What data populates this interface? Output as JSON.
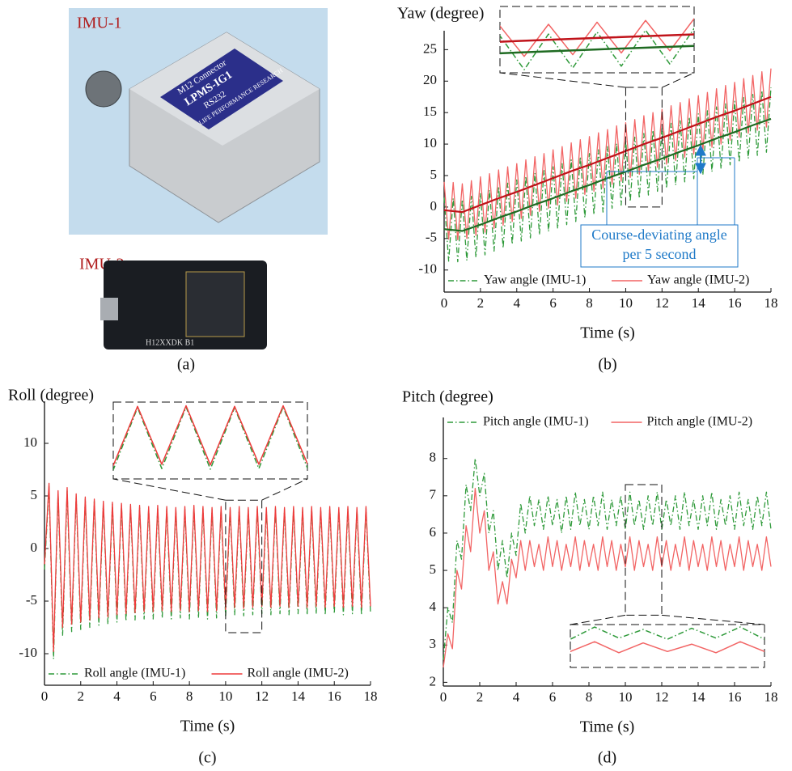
{
  "photo_panel": {
    "labels": [
      "IMU-1",
      "IMU-2"
    ],
    "caption": "(a)",
    "device_texts": [
      "M12 Connector",
      "LPMS-IG1",
      "RS232",
      "LIFE PERFORMANCE RESEARCH",
      "H12XXDK B1"
    ]
  },
  "chart_data": [
    {
      "type": "line",
      "caption": "(b)",
      "ylabel": "Yaw (degree)",
      "xlabel": "Time (s)",
      "annotation": [
        "Course-deviating angle",
        "per 5 second"
      ],
      "xlim": [
        0,
        18
      ],
      "xticks": [
        0,
        2,
        4,
        6,
        8,
        10,
        12,
        14,
        16,
        18
      ],
      "ylim": [
        -13.5,
        28
      ],
      "yticks": [
        -10,
        -5,
        0,
        5,
        10,
        15,
        20,
        25
      ],
      "legend": "lower",
      "inset": {
        "xlim": [
          10,
          12
        ],
        "ylim": [
          0,
          19
        ]
      },
      "x": [
        0,
        0.25,
        0.5,
        0.75,
        1,
        1.25,
        1.5,
        1.75,
        2,
        2.25,
        2.5,
        2.75,
        3,
        3.25,
        3.5,
        3.75,
        4,
        4.25,
        4.5,
        4.75,
        5,
        5.25,
        5.5,
        5.75,
        6,
        6.25,
        6.5,
        6.75,
        7,
        7.25,
        7.5,
        7.75,
        8,
        8.25,
        8.5,
        8.75,
        9,
        9.25,
        9.5,
        9.75,
        10,
        10.25,
        10.5,
        10.75,
        11,
        11.25,
        11.5,
        11.75,
        12,
        12.25,
        12.5,
        12.75,
        13,
        13.25,
        13.5,
        13.75,
        14,
        14.25,
        14.5,
        14.75,
        15,
        15.25,
        15.5,
        15.75,
        16,
        16.25,
        16.5,
        16.75,
        17,
        17.25,
        17.5,
        17.75,
        18
      ],
      "series": [
        {
          "name": "Yaw angle (IMU-1)",
          "color": "#2f9a3a",
          "dash": "dashdot",
          "values": [
            1.5,
            -8.6,
            1.4,
            -8.7,
            1.2,
            -8.5,
            1.7,
            -8.0,
            2.2,
            -7.6,
            2.7,
            -7.0,
            3.3,
            -6.5,
            3.8,
            -5.9,
            4.3,
            -5.4,
            4.9,
            -4.9,
            5.4,
            -4.4,
            5.8,
            -3.9,
            6.4,
            -3.4,
            6.9,
            -2.8,
            7.5,
            -2.3,
            8.0,
            -1.7,
            8.5,
            -1.2,
            9.1,
            -0.8,
            9.6,
            -0.2,
            10.1,
            0.3,
            10.6,
            0.9,
            11.1,
            1.4,
            11.7,
            1.9,
            12.2,
            2.5,
            12.7,
            3.0,
            13.3,
            3.5,
            13.7,
            4.0,
            14.3,
            4.5,
            14.8,
            5.1,
            15.3,
            5.6,
            15.9,
            6.1,
            16.4,
            6.7,
            16.8,
            7.1,
            17.4,
            7.7,
            17.9,
            8.2,
            18.5,
            8.7,
            19.0
          ]
        },
        {
          "name": "Yaw angle (IMU-2)",
          "color": "#f26464",
          "dash": "solid",
          "values": [
            4.0,
            -5.1,
            3.9,
            -5.2,
            3.7,
            -5.0,
            4.2,
            -4.5,
            4.8,
            -4.0,
            5.3,
            -3.4,
            5.9,
            -2.9,
            6.4,
            -2.3,
            6.9,
            -1.8,
            7.5,
            -1.3,
            8.0,
            -0.7,
            8.5,
            -0.2,
            9.1,
            0.3,
            9.6,
            0.9,
            10.2,
            1.4,
            10.7,
            2.0,
            11.2,
            2.5,
            11.8,
            3.0,
            12.3,
            3.6,
            12.9,
            4.1,
            13.4,
            4.7,
            13.9,
            5.2,
            14.5,
            5.7,
            15.0,
            6.3,
            15.5,
            6.8,
            16.1,
            7.4,
            16.6,
            7.9,
            17.2,
            8.4,
            17.7,
            9.0,
            18.2,
            9.5,
            18.8,
            10.0,
            19.3,
            10.6,
            19.8,
            11.1,
            20.4,
            11.7,
            20.9,
            12.2,
            21.5,
            12.7,
            22.0
          ]
        },
        {
          "color": "#1f6b22",
          "dash": "solid",
          "x": [
            0,
            1,
            2,
            3,
            4,
            5,
            6,
            7,
            8,
            9,
            10,
            11,
            12,
            13,
            14,
            15,
            16,
            17,
            18
          ],
          "values": [
            -3.5,
            -3.8,
            -2.8,
            -1.7,
            -0.7,
            0.4,
            1.4,
            2.5,
            3.5,
            4.6,
            5.6,
            6.7,
            7.7,
            8.8,
            9.8,
            10.9,
            11.9,
            13.0,
            14.0
          ]
        },
        {
          "color": "#c0131a",
          "dash": "solid",
          "x": [
            0,
            1,
            2,
            3,
            4,
            5,
            6,
            7,
            8,
            9,
            10,
            11,
            12,
            13,
            14,
            15,
            16,
            17,
            18
          ],
          "values": [
            -0.5,
            -0.8,
            0.3,
            1.4,
            2.4,
            3.5,
            4.6,
            5.7,
            6.7,
            7.8,
            8.9,
            10.0,
            11.0,
            12.1,
            13.2,
            14.3,
            15.3,
            16.4,
            17.5
          ]
        }
      ]
    },
    {
      "type": "line",
      "caption": "(c)",
      "ylabel": "Roll (degree)",
      "xlabel": "Time (s)",
      "xlim": [
        0,
        18
      ],
      "xticks": [
        0,
        2,
        4,
        6,
        8,
        10,
        12,
        14,
        16,
        18
      ],
      "ylim": [
        -13,
        14
      ],
      "yticks": [
        -10,
        -5,
        0,
        5,
        10
      ],
      "legend": "lower",
      "inset": {
        "xlim": [
          10,
          12
        ],
        "ylim": [
          -8,
          4.6
        ]
      },
      "x": [
        0,
        0.25,
        0.5,
        0.75,
        1,
        1.25,
        1.5,
        1.75,
        2,
        2.25,
        2.5,
        2.75,
        3,
        3.25,
        3.5,
        3.75,
        4,
        4.25,
        4.5,
        4.75,
        5,
        5.25,
        5.5,
        5.75,
        6,
        6.25,
        6.5,
        6.75,
        7,
        7.25,
        7.5,
        7.75,
        8,
        8.25,
        8.5,
        8.75,
        9,
        9.25,
        9.5,
        9.75,
        10,
        10.25,
        10.5,
        10.75,
        11,
        11.25,
        11.5,
        11.75,
        12,
        12.25,
        12.5,
        12.75,
        13,
        13.25,
        13.5,
        13.75,
        14,
        14.25,
        14.5,
        14.75,
        15,
        15.25,
        15.5,
        15.75,
        16,
        16.25,
        16.5,
        16.75,
        17,
        17.25,
        17.5,
        17.75,
        18
      ],
      "series": [
        {
          "name": "Roll angle (IMU-1)",
          "color": "#2f9a3a",
          "dash": "dashdot",
          "values": [
            -2.0,
            5.9,
            -10.5,
            5.2,
            -8.3,
            5.5,
            -7.9,
            5.0,
            -7.7,
            4.7,
            -7.5,
            4.5,
            -7.3,
            4.3,
            -7.2,
            4.2,
            -7.0,
            4.1,
            -6.9,
            4.0,
            -6.8,
            3.9,
            -6.7,
            3.8,
            -6.7,
            3.9,
            -6.6,
            3.8,
            -6.7,
            3.7,
            -6.6,
            3.8,
            -6.7,
            3.9,
            -6.6,
            3.8,
            -6.7,
            3.7,
            -6.6,
            3.8,
            -6.5,
            3.7,
            -6.3,
            3.8,
            -6.4,
            3.7,
            -6.3,
            3.8,
            -6.2,
            3.7,
            -6.3,
            3.8,
            -6.2,
            3.7,
            -6.3,
            3.8,
            -6.2,
            3.7,
            -6.3,
            3.8,
            -6.2,
            3.7,
            -6.3,
            3.8,
            -6.2,
            3.7,
            -6.3,
            3.8,
            -6.2,
            3.7,
            -6.3,
            3.8,
            -6.2
          ]
        },
        {
          "name": "Roll angle (IMU-2)",
          "color": "#ee3b3b",
          "dash": "solid",
          "values": [
            -1.5,
            6.2,
            -9.8,
            5.5,
            -7.5,
            5.8,
            -7.2,
            5.2,
            -7.0,
            4.9,
            -6.8,
            4.7,
            -6.6,
            4.5,
            -6.5,
            4.4,
            -6.3,
            4.3,
            -6.2,
            4.2,
            -6.1,
            4.1,
            -6.0,
            4.0,
            -6.0,
            4.1,
            -5.9,
            4.0,
            -6.0,
            3.9,
            -5.9,
            4.0,
            -6.0,
            4.1,
            -5.9,
            4.0,
            -6.0,
            3.9,
            -5.9,
            4.0,
            -5.8,
            3.9,
            -5.6,
            4.0,
            -5.7,
            3.9,
            -5.6,
            4.0,
            -5.5,
            3.9,
            -5.6,
            4.0,
            -5.5,
            3.9,
            -5.6,
            4.0,
            -5.5,
            3.9,
            -5.6,
            4.0,
            -5.5,
            3.9,
            -5.6,
            4.0,
            -5.5,
            3.9,
            -5.6,
            4.0,
            -5.5,
            3.9,
            -5.6,
            4.0,
            -5.5
          ]
        }
      ]
    },
    {
      "type": "line",
      "caption": "(d)",
      "ylabel": "Pitch (degree)",
      "xlabel": "Time (s)",
      "xlim": [
        0,
        18
      ],
      "xticks": [
        0,
        2,
        4,
        6,
        8,
        10,
        12,
        14,
        16,
        18
      ],
      "ylim": [
        1.9,
        9.1
      ],
      "yticks": [
        2,
        3,
        4,
        5,
        6,
        7,
        8
      ],
      "legend": "upper",
      "inset": {
        "xlim": [
          10,
          12
        ],
        "ylim": [
          3.8,
          7.3
        ]
      },
      "x": [
        0,
        0.25,
        0.5,
        0.75,
        1,
        1.25,
        1.5,
        1.75,
        2,
        2.25,
        2.5,
        2.75,
        3,
        3.25,
        3.5,
        3.75,
        4,
        4.25,
        4.5,
        4.75,
        5,
        5.25,
        5.5,
        5.75,
        6,
        6.25,
        6.5,
        6.75,
        7,
        7.25,
        7.5,
        7.75,
        8,
        8.25,
        8.5,
        8.75,
        9,
        9.25,
        9.5,
        9.75,
        10,
        10.25,
        10.5,
        10.75,
        11,
        11.25,
        11.5,
        11.75,
        12,
        12.25,
        12.5,
        12.75,
        13,
        13.25,
        13.5,
        13.75,
        14,
        14.25,
        14.5,
        14.75,
        15,
        15.25,
        15.5,
        15.75,
        16,
        16.25,
        16.5,
        16.75,
        17,
        17.25,
        17.5,
        17.75,
        18
      ],
      "series": [
        {
          "name": "Pitch angle (IMU-1)",
          "color": "#2f9a3a",
          "dash": "dashdot",
          "values": [
            2.6,
            4.0,
            3.6,
            5.8,
            5.3,
            7.3,
            6.6,
            8.0,
            7.0,
            7.6,
            6.0,
            6.6,
            5.0,
            5.8,
            4.8,
            6.0,
            5.4,
            6.8,
            6.0,
            7.0,
            6.2,
            6.9,
            6.1,
            7.0,
            6.2,
            6.9,
            6.0,
            7.0,
            6.1,
            7.1,
            6.2,
            6.9,
            6.1,
            7.0,
            6.2,
            7.1,
            6.1,
            6.9,
            6.2,
            7.0,
            6.1,
            7.1,
            6.2,
            6.9,
            6.1,
            7.0,
            6.2,
            7.1,
            6.1,
            6.9,
            6.2,
            7.0,
            6.1,
            7.1,
            6.2,
            6.9,
            6.1,
            7.0,
            6.2,
            7.1,
            6.1,
            6.9,
            6.2,
            7.0,
            6.1,
            7.1,
            6.2,
            6.9,
            6.1,
            7.0,
            6.2,
            7.1,
            6.1
          ]
        },
        {
          "name": "Pitch angle (IMU-2)",
          "color": "#f26464",
          "dash": "solid",
          "values": [
            2.4,
            3.3,
            2.9,
            5.0,
            4.5,
            6.2,
            5.5,
            7.2,
            6.0,
            6.6,
            5.0,
            5.5,
            4.1,
            4.7,
            4.1,
            5.3,
            4.8,
            5.8,
            5.0,
            5.8,
            5.1,
            5.7,
            5.0,
            5.9,
            5.1,
            5.8,
            5.0,
            5.7,
            5.1,
            5.9,
            5.0,
            5.8,
            5.1,
            5.7,
            5.0,
            5.9,
            5.1,
            5.8,
            5.0,
            5.7,
            5.1,
            5.9,
            5.0,
            5.8,
            5.1,
            5.7,
            5.0,
            5.9,
            5.1,
            5.8,
            5.0,
            5.7,
            5.1,
            5.9,
            5.0,
            5.8,
            5.1,
            5.7,
            5.0,
            5.9,
            5.1,
            5.8,
            5.0,
            5.7,
            5.1,
            5.9,
            5.0,
            5.8,
            5.1,
            5.7,
            5.0,
            5.9,
            5.1
          ]
        }
      ]
    }
  ]
}
